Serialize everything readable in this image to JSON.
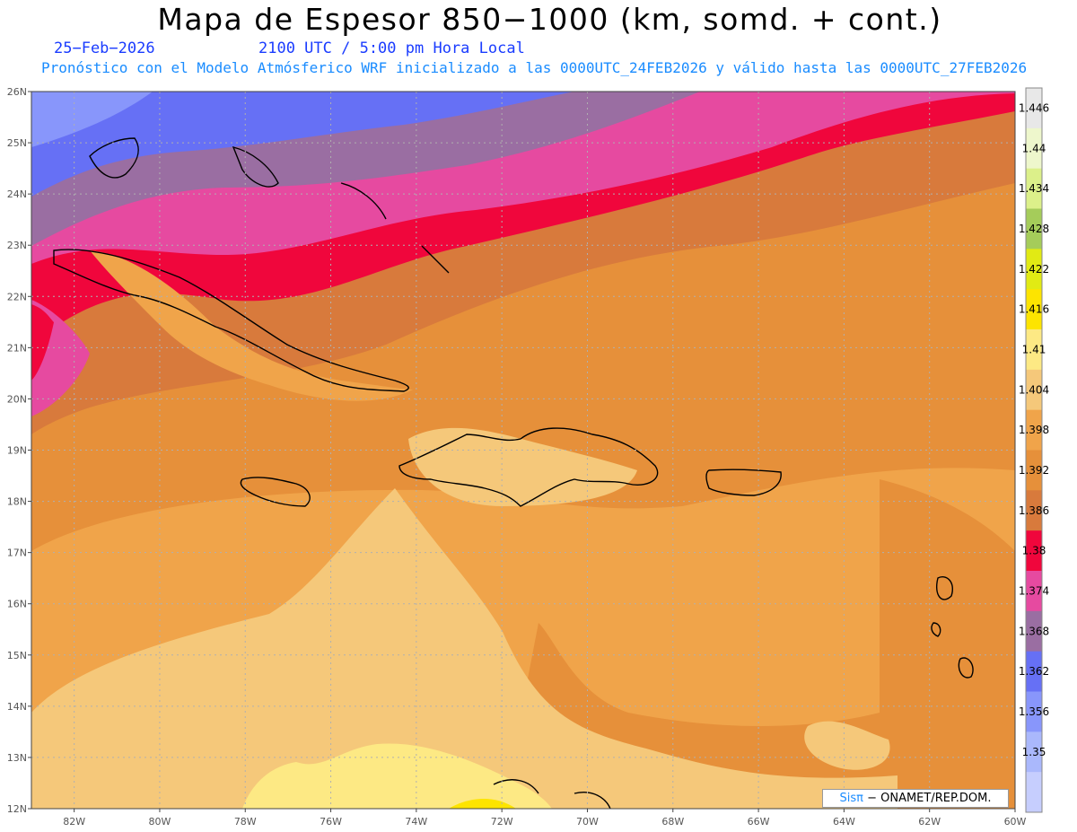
{
  "title": "Mapa de Espesor 850−1000 (km, somd. + cont.)",
  "date": "25−Feb−2026",
  "time": "2100 UTC / 5:00 pm Hora Local",
  "forecast_note": "Pronóstico con el Modelo Atmósferico WRF inicializado a las 0000UTC_24FEB2026 y válido hasta las  0000UTC_27FEB2026",
  "credit": {
    "logo": "Sisπ",
    "text": "− ONAMET/REP.DOM."
  },
  "map": {
    "lon_range": [
      -83,
      -60
    ],
    "lat_range": [
      12,
      26
    ],
    "lat_labels": [
      "26N",
      "25N",
      "24N",
      "23N",
      "22N",
      "21N",
      "20N",
      "19N",
      "18N",
      "17N",
      "16N",
      "15N",
      "14N",
      "13N",
      "12N"
    ],
    "lon_labels": [
      "82W",
      "80W",
      "78W",
      "76W",
      "74W",
      "72W",
      "70W",
      "68W",
      "66W",
      "64W",
      "62W",
      "60W"
    ]
  },
  "colorbar": {
    "levels": [
      "1.446",
      "1.44",
      "1.434",
      "1.428",
      "1.422",
      "1.416",
      "1.41",
      "1.404",
      "1.398",
      "1.392",
      "1.386",
      "1.38",
      "1.374",
      "1.368",
      "1.362",
      "1.356",
      "1.35"
    ],
    "colors": [
      "#e8e8e8",
      "#eef7cc",
      "#dcf08a",
      "#a5cc5a",
      "#e1ea14",
      "#fde400",
      "#fde984",
      "#f5c87a",
      "#f0a44a",
      "#e6903a",
      "#d87a3c",
      "#f0063c",
      "#e64aa0",
      "#9a6ea2",
      "#6670f5",
      "#8896fb",
      "#aab8fc",
      "#c6cefe"
    ]
  }
}
